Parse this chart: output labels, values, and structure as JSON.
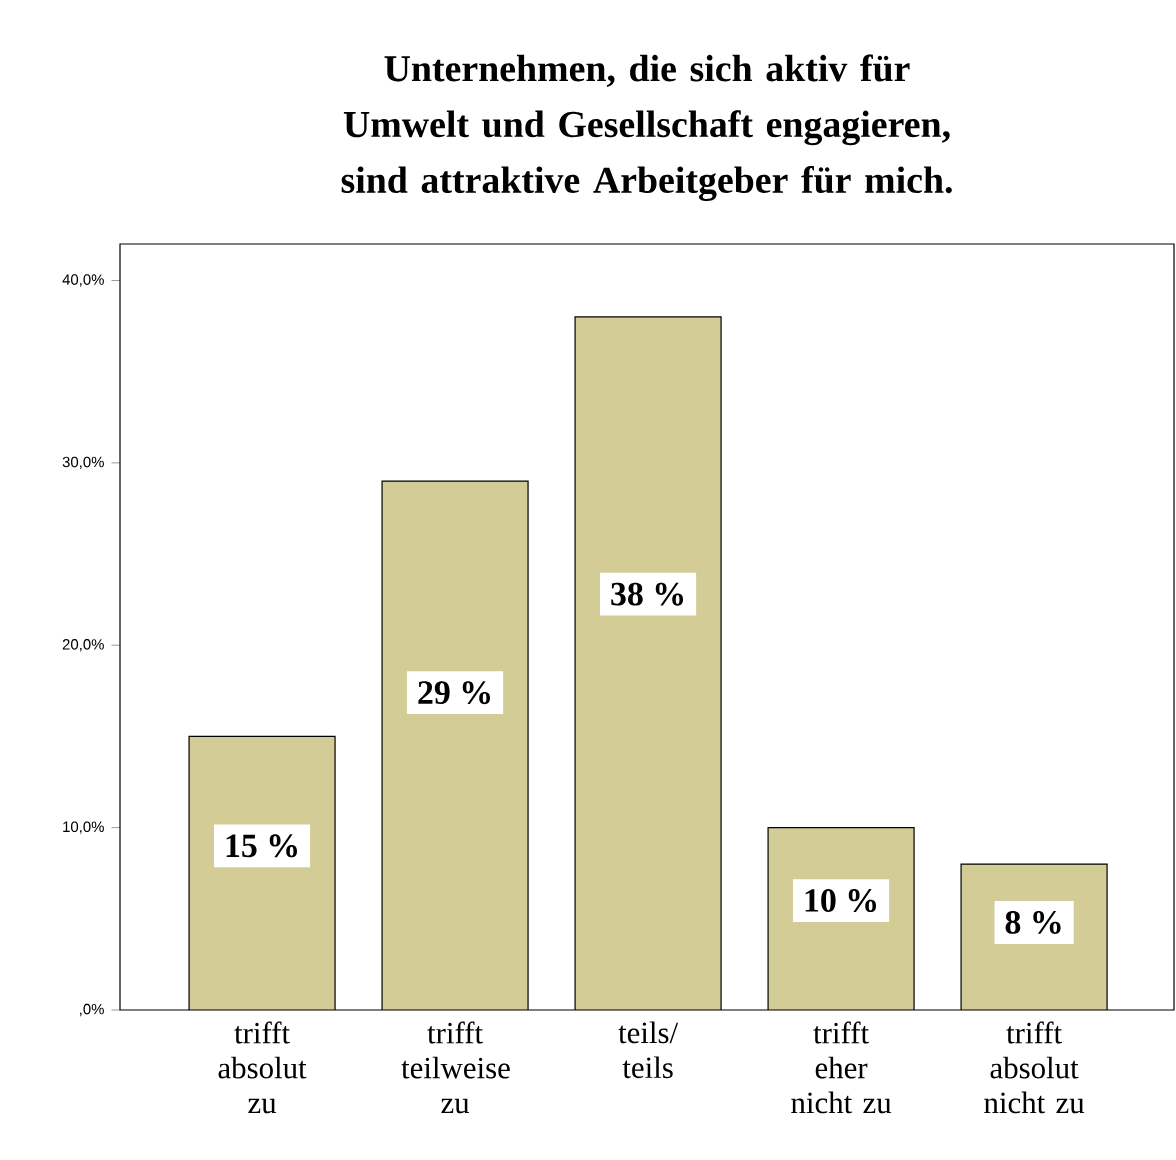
{
  "chart_data": {
    "type": "bar",
    "title": "Unternehmen, die sich aktiv für Umwelt und Gesellschaft engagieren, sind attraktive Arbeitgeber für mich.",
    "categories": [
      "trifft absolut zu",
      "trifft teilweise zu",
      "teils/ teils",
      "trifft eher nicht zu",
      "trifft absolut nicht zu"
    ],
    "values": [
      15,
      29,
      38,
      10,
      8
    ],
    "value_labels": [
      "15 %",
      "29 %",
      "38 %",
      "10 %",
      "8 %"
    ],
    "color": "#d3cc96",
    "ylim": [
      0,
      42
    ],
    "yticks": [
      {
        "value": 0,
        "label": ",0%"
      },
      {
        "value": 10,
        "label": "10,0%"
      },
      {
        "value": 20,
        "label": "20,0%"
      },
      {
        "value": 30,
        "label": "30,0%"
      },
      {
        "value": 40,
        "label": "40,0%"
      }
    ]
  }
}
